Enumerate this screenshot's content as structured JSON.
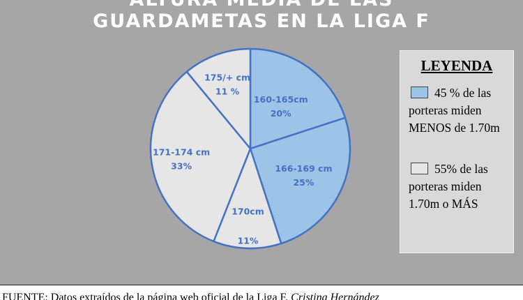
{
  "title_line1": "ALTURA MEDIA DE LAS",
  "title_line2": "GUARDAMETAS EN LA LIGA F",
  "chart_data": {
    "type": "pie",
    "slices": [
      {
        "line1": "160-165cm",
        "line2": "20%",
        "value": 20,
        "color": "#9dc3e6"
      },
      {
        "line1": "166-169 cm",
        "line2": "25%",
        "value": 25,
        "color": "#9dc3e6"
      },
      {
        "line1": "170cm",
        "line2": "11%",
        "value": 11,
        "color": "#e7e6e6"
      },
      {
        "line1": "171-174 cm",
        "line2": "33%",
        "value": 33,
        "color": "#e7e6e6"
      },
      {
        "line1": "175/+  cm",
        "line2": "11 %",
        "value": 11,
        "color": "#e7e6e6"
      }
    ],
    "start": "12 o'clock, clockwise",
    "edge_color": "#4472c4",
    "label_color": "#4472c4"
  },
  "legend": {
    "title": "LEYENDA",
    "items": [
      {
        "text": "45 % de las porteras miden MENOS de 1.70m",
        "color": "#9dc3e6"
      },
      {
        "text": "55% de las porteras miden 1.70m o MÁS",
        "color": "#e7e6e6"
      }
    ]
  },
  "footer": {
    "text": "FUENTE: Datos extraídos de la página web oficial de la Liga F.",
    "author": "Cristina Hernández"
  },
  "background": "#a6a6a6"
}
